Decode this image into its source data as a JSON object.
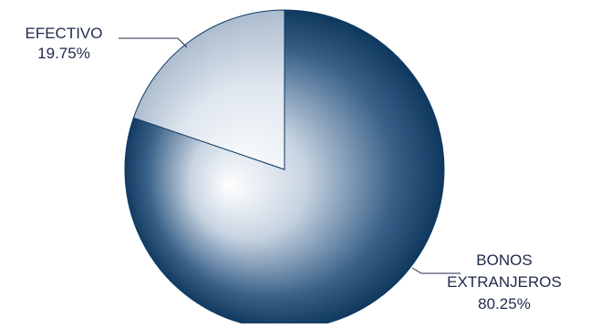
{
  "chart_data": {
    "type": "pie",
    "title": "",
    "slices": [
      {
        "label_lines": [
          "BONOS",
          "EXTRANJEROS"
        ],
        "value": 80.25,
        "value_label": "80.25%",
        "color": "#0d3a63"
      },
      {
        "label_lines": [
          "EFECTIVO"
        ],
        "value": 19.75,
        "value_label": "19.75%",
        "color": "#b9c6d6"
      }
    ],
    "start_angle": "12 o'clock",
    "direction": "clockwise",
    "legend": "none",
    "label_style": "outside labels with leader lines"
  }
}
